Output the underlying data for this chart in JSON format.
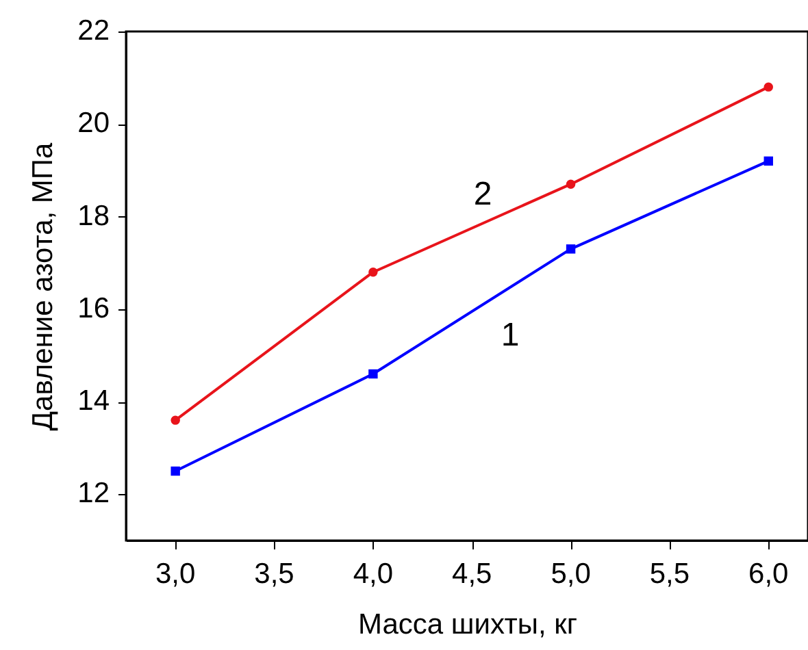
{
  "chart_data": {
    "type": "line",
    "xlabel": "Масса шихты, кг",
    "ylabel": "Давление азота, МПа",
    "x": [
      3.0,
      4.0,
      5.0,
      6.0
    ],
    "series": [
      {
        "name": "1",
        "color": "#0000ff",
        "marker": "square",
        "values": [
          12.5,
          14.6,
          17.3,
          19.2
        ]
      },
      {
        "name": "2",
        "color": "#e8141b",
        "marker": "circle",
        "values": [
          13.6,
          16.8,
          18.7,
          20.8
        ]
      }
    ],
    "xlim": [
      2.75,
      6.2
    ],
    "ylim": [
      11,
      22
    ],
    "xticks": [
      {
        "value": 3,
        "label": "3,0"
      },
      {
        "value": 3.5,
        "label": "3,5"
      },
      {
        "value": 4,
        "label": "4,0"
      },
      {
        "value": 4.5,
        "label": "4,5"
      },
      {
        "value": 5,
        "label": "5,0"
      },
      {
        "value": 5.5,
        "label": "5,5"
      },
      {
        "value": 6,
        "label": "6,0"
      }
    ],
    "yticks": [
      12,
      14,
      16,
      18,
      20,
      22
    ],
    "grid": false,
    "legend": false,
    "line_style": "solid"
  }
}
